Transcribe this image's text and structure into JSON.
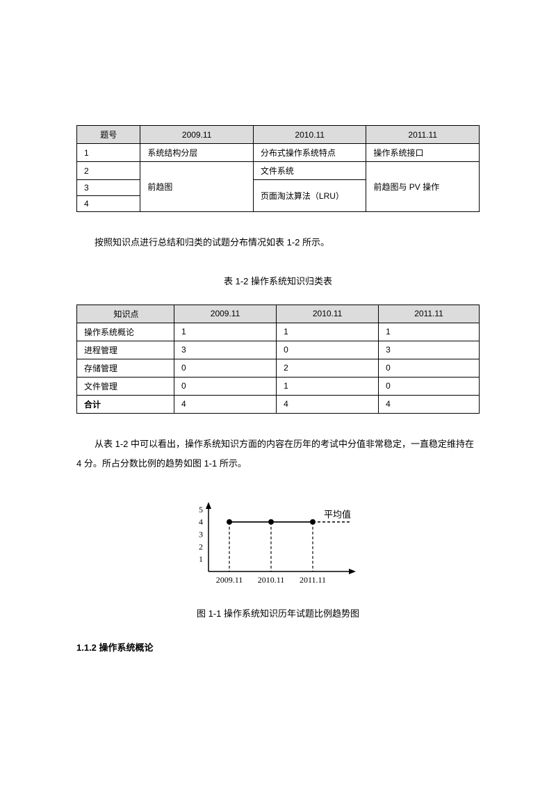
{
  "table1": {
    "headers": [
      "题号",
      "2009.11",
      "2010.11",
      "2011.11"
    ],
    "rows": {
      "r1": {
        "num": "1",
        "c1": "系统结构分层",
        "c2": "分布式操作系统特点",
        "c3": "操作系统接口"
      },
      "r2": {
        "num": "2",
        "c2": "文件系统"
      },
      "r3": {
        "num": "3",
        "c1": "前趋图",
        "c2": "页面淘汰算法（LRU）",
        "c3": "前趋图与 PV 操作"
      },
      "r4": {
        "num": "4"
      }
    }
  },
  "para1": "按照知识点进行总结和归类的试题分布情况如表 1-2 所示。",
  "caption1": "表 1-2  操作系统知识归类表",
  "table2": {
    "headers": [
      "知识点",
      "2009.11",
      "2010.11",
      "2011.11"
    ],
    "rows": [
      {
        "label": "操作系统概论",
        "c1": "1",
        "c2": "1",
        "c3": "1"
      },
      {
        "label": "进程管理",
        "c1": "3",
        "c2": "0",
        "c3": "3"
      },
      {
        "label": "存储管理",
        "c1": "0",
        "c2": "2",
        "c3": "0"
      },
      {
        "label": "文件管理",
        "c1": "0",
        "c2": "1",
        "c3": "0"
      },
      {
        "label": "合计",
        "c1": "4",
        "c2": "4",
        "c3": "4"
      }
    ]
  },
  "para2": "从表 1-2 中可以看出，操作系统知识方面的内容在历年的考试中分值非常稳定，一直稳定维持在 4 分。所占分数比例的趋势如图 1-1 所示。",
  "chart": {
    "type": "line",
    "y_ticks": [
      "1",
      "2",
      "3",
      "4",
      "5"
    ],
    "x_labels": [
      "2009.11",
      "2010.11",
      "2011.11"
    ],
    "points_y": 4,
    "legend": "平均值",
    "axis_color": "#000000",
    "line_color": "#000000",
    "marker_fill": "#000000",
    "marker_radius": 4,
    "font_size": 12,
    "background_color": "#ffffff",
    "ylim": [
      0,
      5.5
    ],
    "dash_pattern": "4,3"
  },
  "caption2": "图 1-1  操作系统知识历年试题比例趋势图",
  "section": "1.1.2   操作系统概论"
}
